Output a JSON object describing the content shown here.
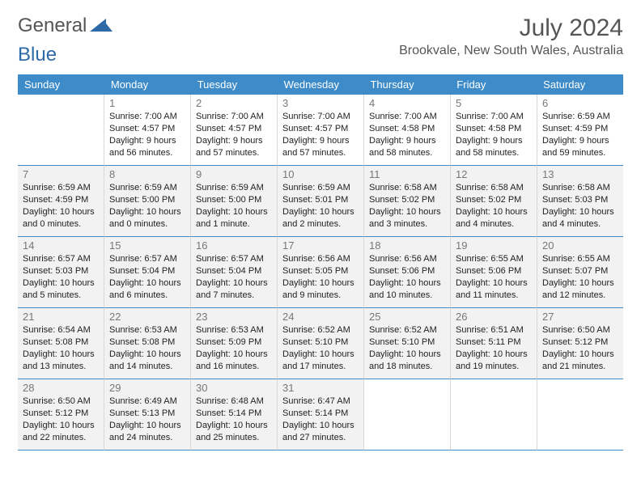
{
  "logo": {
    "part1": "General",
    "part2": "Blue"
  },
  "title": "July 2024",
  "location": "Brookvale, New South Wales, Australia",
  "colors": {
    "header_bg": "#3d8bc9",
    "header_text": "#ffffff",
    "border": "#3d8bc9",
    "cell_border": "#d8d8d8",
    "shade_bg": "#f2f2f2",
    "text": "#222222",
    "muted": "#777777",
    "logo_gray": "#555555",
    "logo_blue": "#2c6aa8"
  },
  "headers": [
    "Sunday",
    "Monday",
    "Tuesday",
    "Wednesday",
    "Thursday",
    "Friday",
    "Saturday"
  ],
  "weeks": [
    [
      {
        "num": "",
        "shade": false,
        "sunrise": "",
        "sunset": "",
        "daylight1": "",
        "daylight2": ""
      },
      {
        "num": "1",
        "shade": false,
        "sunrise": "Sunrise: 7:00 AM",
        "sunset": "Sunset: 4:57 PM",
        "daylight1": "Daylight: 9 hours",
        "daylight2": "and 56 minutes."
      },
      {
        "num": "2",
        "shade": false,
        "sunrise": "Sunrise: 7:00 AM",
        "sunset": "Sunset: 4:57 PM",
        "daylight1": "Daylight: 9 hours",
        "daylight2": "and 57 minutes."
      },
      {
        "num": "3",
        "shade": false,
        "sunrise": "Sunrise: 7:00 AM",
        "sunset": "Sunset: 4:57 PM",
        "daylight1": "Daylight: 9 hours",
        "daylight2": "and 57 minutes."
      },
      {
        "num": "4",
        "shade": false,
        "sunrise": "Sunrise: 7:00 AM",
        "sunset": "Sunset: 4:58 PM",
        "daylight1": "Daylight: 9 hours",
        "daylight2": "and 58 minutes."
      },
      {
        "num": "5",
        "shade": false,
        "sunrise": "Sunrise: 7:00 AM",
        "sunset": "Sunset: 4:58 PM",
        "daylight1": "Daylight: 9 hours",
        "daylight2": "and 58 minutes."
      },
      {
        "num": "6",
        "shade": false,
        "sunrise": "Sunrise: 6:59 AM",
        "sunset": "Sunset: 4:59 PM",
        "daylight1": "Daylight: 9 hours",
        "daylight2": "and 59 minutes."
      }
    ],
    [
      {
        "num": "7",
        "shade": true,
        "sunrise": "Sunrise: 6:59 AM",
        "sunset": "Sunset: 4:59 PM",
        "daylight1": "Daylight: 10 hours",
        "daylight2": "and 0 minutes."
      },
      {
        "num": "8",
        "shade": true,
        "sunrise": "Sunrise: 6:59 AM",
        "sunset": "Sunset: 5:00 PM",
        "daylight1": "Daylight: 10 hours",
        "daylight2": "and 0 minutes."
      },
      {
        "num": "9",
        "shade": true,
        "sunrise": "Sunrise: 6:59 AM",
        "sunset": "Sunset: 5:00 PM",
        "daylight1": "Daylight: 10 hours",
        "daylight2": "and 1 minute."
      },
      {
        "num": "10",
        "shade": true,
        "sunrise": "Sunrise: 6:59 AM",
        "sunset": "Sunset: 5:01 PM",
        "daylight1": "Daylight: 10 hours",
        "daylight2": "and 2 minutes."
      },
      {
        "num": "11",
        "shade": true,
        "sunrise": "Sunrise: 6:58 AM",
        "sunset": "Sunset: 5:02 PM",
        "daylight1": "Daylight: 10 hours",
        "daylight2": "and 3 minutes."
      },
      {
        "num": "12",
        "shade": true,
        "sunrise": "Sunrise: 6:58 AM",
        "sunset": "Sunset: 5:02 PM",
        "daylight1": "Daylight: 10 hours",
        "daylight2": "and 4 minutes."
      },
      {
        "num": "13",
        "shade": true,
        "sunrise": "Sunrise: 6:58 AM",
        "sunset": "Sunset: 5:03 PM",
        "daylight1": "Daylight: 10 hours",
        "daylight2": "and 4 minutes."
      }
    ],
    [
      {
        "num": "14",
        "shade": true,
        "sunrise": "Sunrise: 6:57 AM",
        "sunset": "Sunset: 5:03 PM",
        "daylight1": "Daylight: 10 hours",
        "daylight2": "and 5 minutes."
      },
      {
        "num": "15",
        "shade": true,
        "sunrise": "Sunrise: 6:57 AM",
        "sunset": "Sunset: 5:04 PM",
        "daylight1": "Daylight: 10 hours",
        "daylight2": "and 6 minutes."
      },
      {
        "num": "16",
        "shade": true,
        "sunrise": "Sunrise: 6:57 AM",
        "sunset": "Sunset: 5:04 PM",
        "daylight1": "Daylight: 10 hours",
        "daylight2": "and 7 minutes."
      },
      {
        "num": "17",
        "shade": true,
        "sunrise": "Sunrise: 6:56 AM",
        "sunset": "Sunset: 5:05 PM",
        "daylight1": "Daylight: 10 hours",
        "daylight2": "and 9 minutes."
      },
      {
        "num": "18",
        "shade": true,
        "sunrise": "Sunrise: 6:56 AM",
        "sunset": "Sunset: 5:06 PM",
        "daylight1": "Daylight: 10 hours",
        "daylight2": "and 10 minutes."
      },
      {
        "num": "19",
        "shade": true,
        "sunrise": "Sunrise: 6:55 AM",
        "sunset": "Sunset: 5:06 PM",
        "daylight1": "Daylight: 10 hours",
        "daylight2": "and 11 minutes."
      },
      {
        "num": "20",
        "shade": true,
        "sunrise": "Sunrise: 6:55 AM",
        "sunset": "Sunset: 5:07 PM",
        "daylight1": "Daylight: 10 hours",
        "daylight2": "and 12 minutes."
      }
    ],
    [
      {
        "num": "21",
        "shade": true,
        "sunrise": "Sunrise: 6:54 AM",
        "sunset": "Sunset: 5:08 PM",
        "daylight1": "Daylight: 10 hours",
        "daylight2": "and 13 minutes."
      },
      {
        "num": "22",
        "shade": true,
        "sunrise": "Sunrise: 6:53 AM",
        "sunset": "Sunset: 5:08 PM",
        "daylight1": "Daylight: 10 hours",
        "daylight2": "and 14 minutes."
      },
      {
        "num": "23",
        "shade": true,
        "sunrise": "Sunrise: 6:53 AM",
        "sunset": "Sunset: 5:09 PM",
        "daylight1": "Daylight: 10 hours",
        "daylight2": "and 16 minutes."
      },
      {
        "num": "24",
        "shade": true,
        "sunrise": "Sunrise: 6:52 AM",
        "sunset": "Sunset: 5:10 PM",
        "daylight1": "Daylight: 10 hours",
        "daylight2": "and 17 minutes."
      },
      {
        "num": "25",
        "shade": true,
        "sunrise": "Sunrise: 6:52 AM",
        "sunset": "Sunset: 5:10 PM",
        "daylight1": "Daylight: 10 hours",
        "daylight2": "and 18 minutes."
      },
      {
        "num": "26",
        "shade": true,
        "sunrise": "Sunrise: 6:51 AM",
        "sunset": "Sunset: 5:11 PM",
        "daylight1": "Daylight: 10 hours",
        "daylight2": "and 19 minutes."
      },
      {
        "num": "27",
        "shade": true,
        "sunrise": "Sunrise: 6:50 AM",
        "sunset": "Sunset: 5:12 PM",
        "daylight1": "Daylight: 10 hours",
        "daylight2": "and 21 minutes."
      }
    ],
    [
      {
        "num": "28",
        "shade": true,
        "sunrise": "Sunrise: 6:50 AM",
        "sunset": "Sunset: 5:12 PM",
        "daylight1": "Daylight: 10 hours",
        "daylight2": "and 22 minutes."
      },
      {
        "num": "29",
        "shade": true,
        "sunrise": "Sunrise: 6:49 AM",
        "sunset": "Sunset: 5:13 PM",
        "daylight1": "Daylight: 10 hours",
        "daylight2": "and 24 minutes."
      },
      {
        "num": "30",
        "shade": true,
        "sunrise": "Sunrise: 6:48 AM",
        "sunset": "Sunset: 5:14 PM",
        "daylight1": "Daylight: 10 hours",
        "daylight2": "and 25 minutes."
      },
      {
        "num": "31",
        "shade": true,
        "sunrise": "Sunrise: 6:47 AM",
        "sunset": "Sunset: 5:14 PM",
        "daylight1": "Daylight: 10 hours",
        "daylight2": "and 27 minutes."
      },
      {
        "num": "",
        "shade": false,
        "sunrise": "",
        "sunset": "",
        "daylight1": "",
        "daylight2": ""
      },
      {
        "num": "",
        "shade": false,
        "sunrise": "",
        "sunset": "",
        "daylight1": "",
        "daylight2": ""
      },
      {
        "num": "",
        "shade": false,
        "sunrise": "",
        "sunset": "",
        "daylight1": "",
        "daylight2": ""
      }
    ]
  ]
}
